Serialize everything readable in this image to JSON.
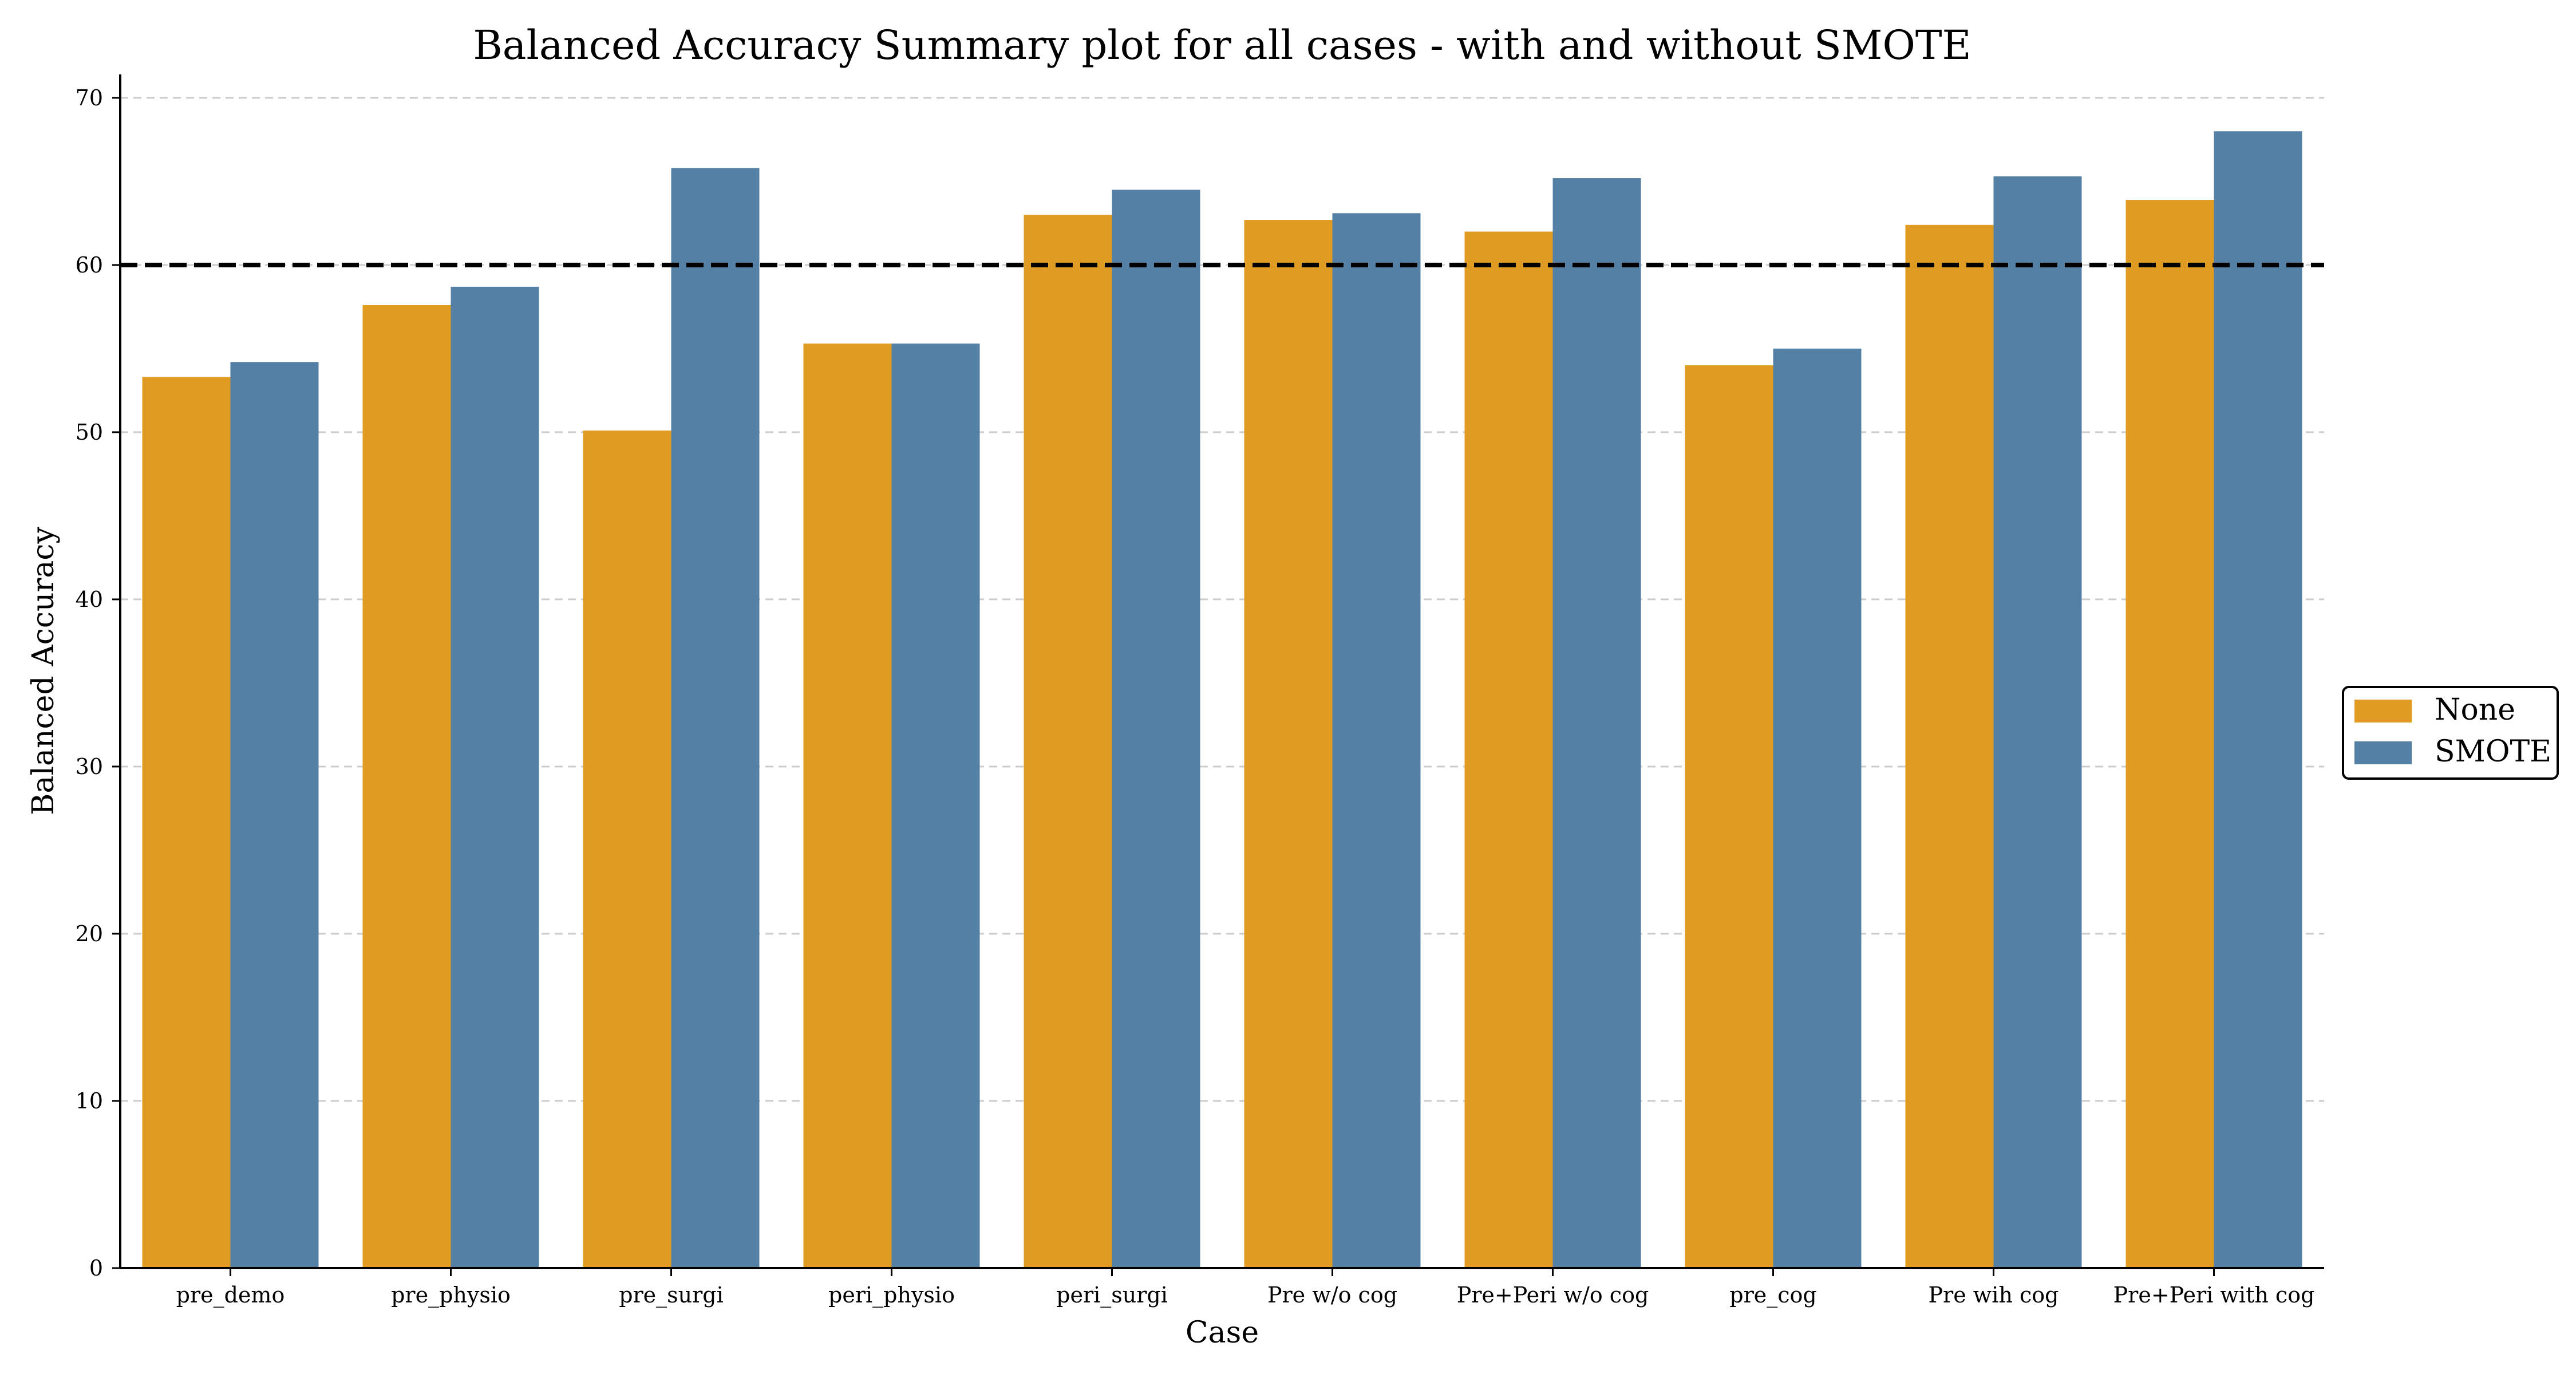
{
  "chart_data": {
    "type": "bar",
    "title": "Balanced Accuracy Summary plot for all cases - with and without SMOTE",
    "xlabel": "Case",
    "ylabel": "Balanced Accuracy",
    "categories": [
      "pre_demo",
      "pre_physio",
      "pre_surgi",
      "peri_physio",
      "peri_surgi",
      "Pre w/o cog",
      "Pre+Peri w/o cog",
      "pre_cog",
      "Pre wih cog",
      "Pre+Peri with cog"
    ],
    "series": [
      {
        "name": "None",
        "color": "#E09C22",
        "values": [
          53.3,
          57.6,
          50.1,
          55.3,
          63.0,
          62.7,
          62.0,
          54.0,
          62.4,
          63.9
        ]
      },
      {
        "name": "SMOTE",
        "color": "#5480A6",
        "values": [
          54.2,
          58.7,
          65.8,
          55.3,
          64.5,
          63.1,
          65.2,
          55.0,
          65.3,
          68.0
        ]
      }
    ],
    "ylim": [
      0,
      71.4
    ],
    "yticks": [
      0,
      10,
      20,
      30,
      40,
      50,
      60,
      70
    ],
    "reference_line": {
      "y": 60,
      "style": "dashed",
      "color": "#000000"
    },
    "grid": {
      "y": true,
      "x": false
    },
    "legend_position": "center-right"
  }
}
